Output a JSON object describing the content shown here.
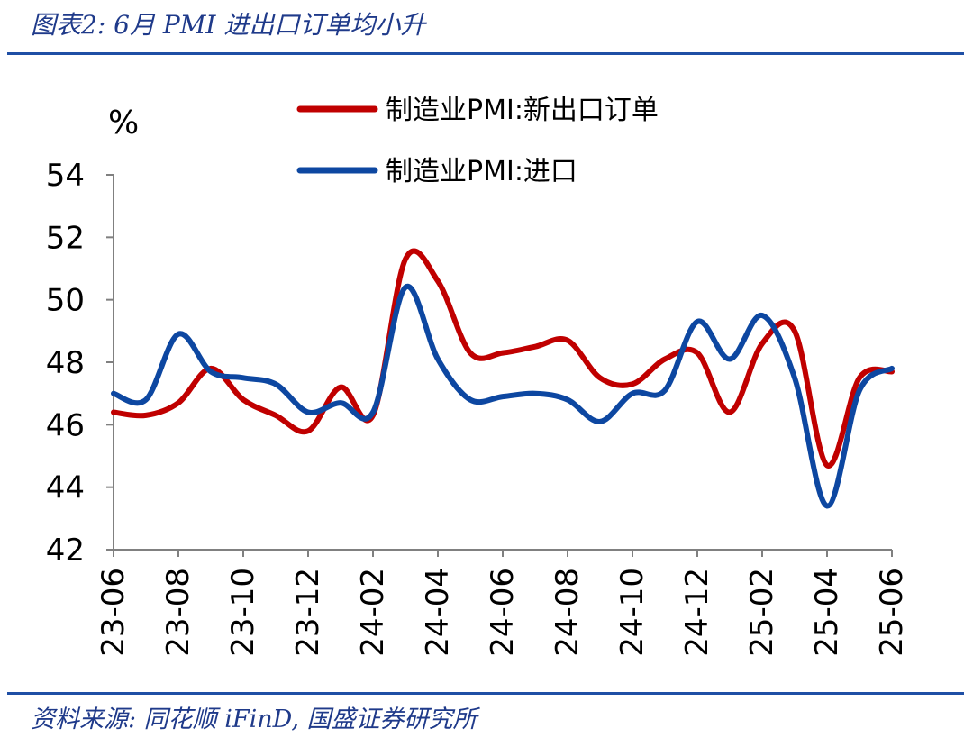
{
  "figure": {
    "title": "图表2:  6月 PMI 进出口订单均小升",
    "source": "资料来源:  同花顺 iFinD, 国盛证券研究所"
  },
  "chart_data": {
    "type": "line",
    "ylabel": "%",
    "ylim": [
      42,
      54
    ],
    "yticks": [
      "42",
      "44",
      "46",
      "48",
      "50",
      "52",
      "54"
    ],
    "x": [
      "23-06",
      "23-07",
      "23-08",
      "23-09",
      "23-10",
      "23-11",
      "23-12",
      "24-01",
      "24-02",
      "24-03",
      "24-04",
      "24-05",
      "24-06",
      "24-07",
      "24-08",
      "24-09",
      "24-10",
      "24-11",
      "24-12",
      "25-01",
      "25-02",
      "25-03",
      "25-04",
      "25-05",
      "25-06"
    ],
    "xtick_labels": [
      "23-06",
      "23-08",
      "23-10",
      "23-12",
      "24-02",
      "24-04",
      "24-06",
      "24-08",
      "24-10",
      "24-12",
      "25-02",
      "25-04",
      "25-06"
    ],
    "legend_position": "top",
    "series": [
      {
        "name": "制造业PMI:新出口订单",
        "color": "#c00000",
        "values": [
          46.4,
          46.3,
          46.7,
          47.8,
          46.8,
          46.3,
          45.8,
          47.2,
          46.3,
          51.3,
          50.6,
          48.3,
          48.3,
          48.5,
          48.7,
          47.5,
          47.3,
          48.1,
          48.3,
          46.4,
          48.6,
          49.0,
          44.7,
          47.5,
          47.7
        ]
      },
      {
        "name": "制造业PMI:进口",
        "color": "#0d47a1",
        "values": [
          47.0,
          46.8,
          48.9,
          47.7,
          47.5,
          47.3,
          46.4,
          46.7,
          46.4,
          50.4,
          48.1,
          46.8,
          46.9,
          47.0,
          46.8,
          46.1,
          47.0,
          47.1,
          49.3,
          48.1,
          49.5,
          47.5,
          43.4,
          47.1,
          47.8
        ]
      }
    ]
  }
}
